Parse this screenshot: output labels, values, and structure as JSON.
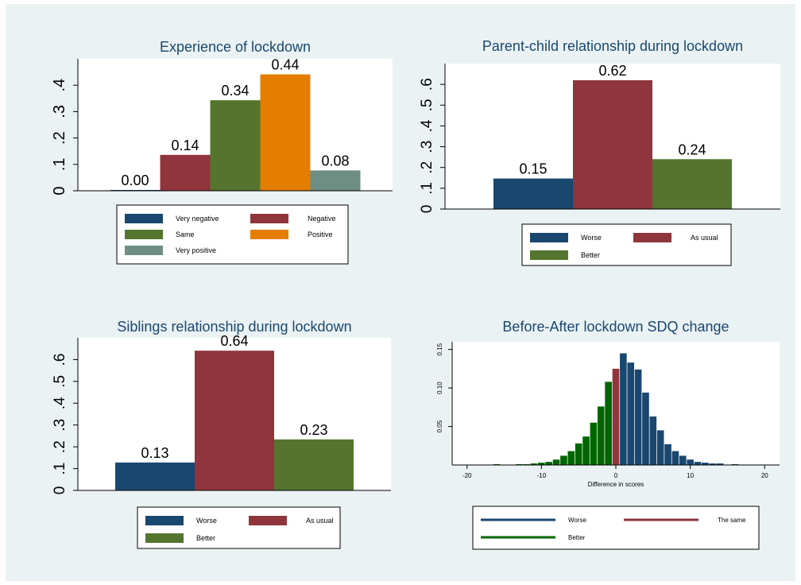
{
  "colors": {
    "navy": "#1a476f",
    "maroon": "#90353b",
    "green": "#55752f",
    "orange": "#e37e00",
    "gray_green": "#6e8e84",
    "dark_green": "#006600",
    "background": "#eaf2f3",
    "plot_bg": "#ffffff"
  },
  "chart_data": [
    {
      "id": "lockdown",
      "type": "bar",
      "title": "Experience of lockdown",
      "categories": [
        "Very negative",
        "Negative",
        "Same",
        "Positive",
        "Very positive"
      ],
      "values": [
        0.003,
        0.136,
        0.343,
        0.441,
        0.077
      ],
      "value_labels": [
        "0.00",
        "0.14",
        "0.34",
        "0.44",
        "0.08"
      ],
      "colors": [
        "#1a476f",
        "#90353b",
        "#55752f",
        "#e37e00",
        "#6e8e84"
      ],
      "yticks": [
        0,
        0.1,
        0.2,
        0.3,
        0.4
      ],
      "ytick_labels": [
        "0",
        ".1",
        ".2",
        ".3",
        ".4"
      ],
      "ylim": [
        0,
        0.5
      ],
      "xlabel": "",
      "ylabel": "",
      "grid": false,
      "legend": {
        "position": "bottom",
        "entries": [
          "Very negative",
          "Negative",
          "Same",
          "Positive",
          "Very positive"
        ]
      }
    },
    {
      "id": "parent",
      "type": "bar",
      "title": "Parent-child relationship during lockdown",
      "categories": [
        "Worse",
        "As usual",
        "Better"
      ],
      "values": [
        0.147,
        0.62,
        0.24
      ],
      "value_labels": [
        "0.15",
        "0.62",
        "0.24"
      ],
      "colors": [
        "#1a476f",
        "#90353b",
        "#55752f"
      ],
      "yticks": [
        0,
        0.1,
        0.2,
        0.3,
        0.4,
        0.5,
        0.6
      ],
      "ytick_labels": [
        "0",
        ".1",
        ".2",
        ".3",
        ".4",
        ".5",
        ".6"
      ],
      "ylim": [
        0,
        0.7
      ],
      "xlabel": "",
      "ylabel": "",
      "grid": false,
      "legend": {
        "position": "bottom",
        "entries": [
          "Worse",
          "As usual",
          "Better"
        ]
      }
    },
    {
      "id": "siblings",
      "type": "bar",
      "title": "Siblings relationship during lockdown",
      "categories": [
        "Worse",
        "As usual",
        "Better"
      ],
      "values": [
        0.128,
        0.641,
        0.234
      ],
      "value_labels": [
        "0.13",
        "0.64",
        "0.23"
      ],
      "colors": [
        "#1a476f",
        "#90353b",
        "#55752f"
      ],
      "yticks": [
        0,
        0.1,
        0.2,
        0.3,
        0.4,
        0.5,
        0.6
      ],
      "ytick_labels": [
        "0",
        ".1",
        ".2",
        ".3",
        ".4",
        ".5",
        ".6"
      ],
      "ylim": [
        0,
        0.7
      ],
      "xlabel": "",
      "ylabel": "",
      "grid": false,
      "legend": {
        "position": "bottom",
        "entries": [
          "Worse",
          "As usual",
          "Better"
        ]
      }
    },
    {
      "id": "sdq",
      "type": "bar",
      "title": "Before-After lockdown SDQ change",
      "xlabel": "Difference in scores",
      "ylabel": "",
      "x": [
        -16,
        -13,
        -12,
        -11,
        -10,
        -9,
        -8,
        -7,
        -6,
        -5,
        -4,
        -3,
        -2,
        -1,
        0,
        1,
        2,
        3,
        4,
        5,
        6,
        7,
        8,
        9,
        10,
        11,
        12,
        13,
        14,
        16
      ],
      "values": [
        0.001,
        0.001,
        0.001,
        0.002,
        0.003,
        0.004,
        0.007,
        0.012,
        0.018,
        0.028,
        0.037,
        0.055,
        0.076,
        0.108,
        0.125,
        0.145,
        0.133,
        0.124,
        0.094,
        0.063,
        0.045,
        0.027,
        0.018,
        0.012,
        0.007,
        0.004,
        0.003,
        0.002,
        0.002,
        0.001
      ],
      "series_group": [
        "Better",
        "Better",
        "Better",
        "Better",
        "Better",
        "Better",
        "Better",
        "Better",
        "Better",
        "Better",
        "Better",
        "Better",
        "Better",
        "Better",
        "The same",
        "Worse",
        "Worse",
        "Worse",
        "Worse",
        "Worse",
        "Worse",
        "Worse",
        "Worse",
        "Worse",
        "Worse",
        "Worse",
        "Worse",
        "Worse",
        "Worse",
        "Worse"
      ],
      "xlim": [
        -22,
        22
      ],
      "ylim": [
        0,
        0.16
      ],
      "xticks": [
        -20,
        -10,
        0,
        10,
        20
      ],
      "xtick_labels": [
        "-20",
        "-10",
        "0",
        "10",
        "20"
      ],
      "yticks": [
        0.05,
        0.1,
        0.15
      ],
      "ytick_labels": [
        "0.05",
        "0.10",
        "0.15"
      ],
      "grid": false,
      "legend": {
        "position": "bottom",
        "entries": [
          {
            "name": "Worse",
            "color": "#1a476f"
          },
          {
            "name": "The same",
            "color": "#90353b"
          },
          {
            "name": "Better",
            "color": "#006600"
          }
        ]
      }
    }
  ]
}
